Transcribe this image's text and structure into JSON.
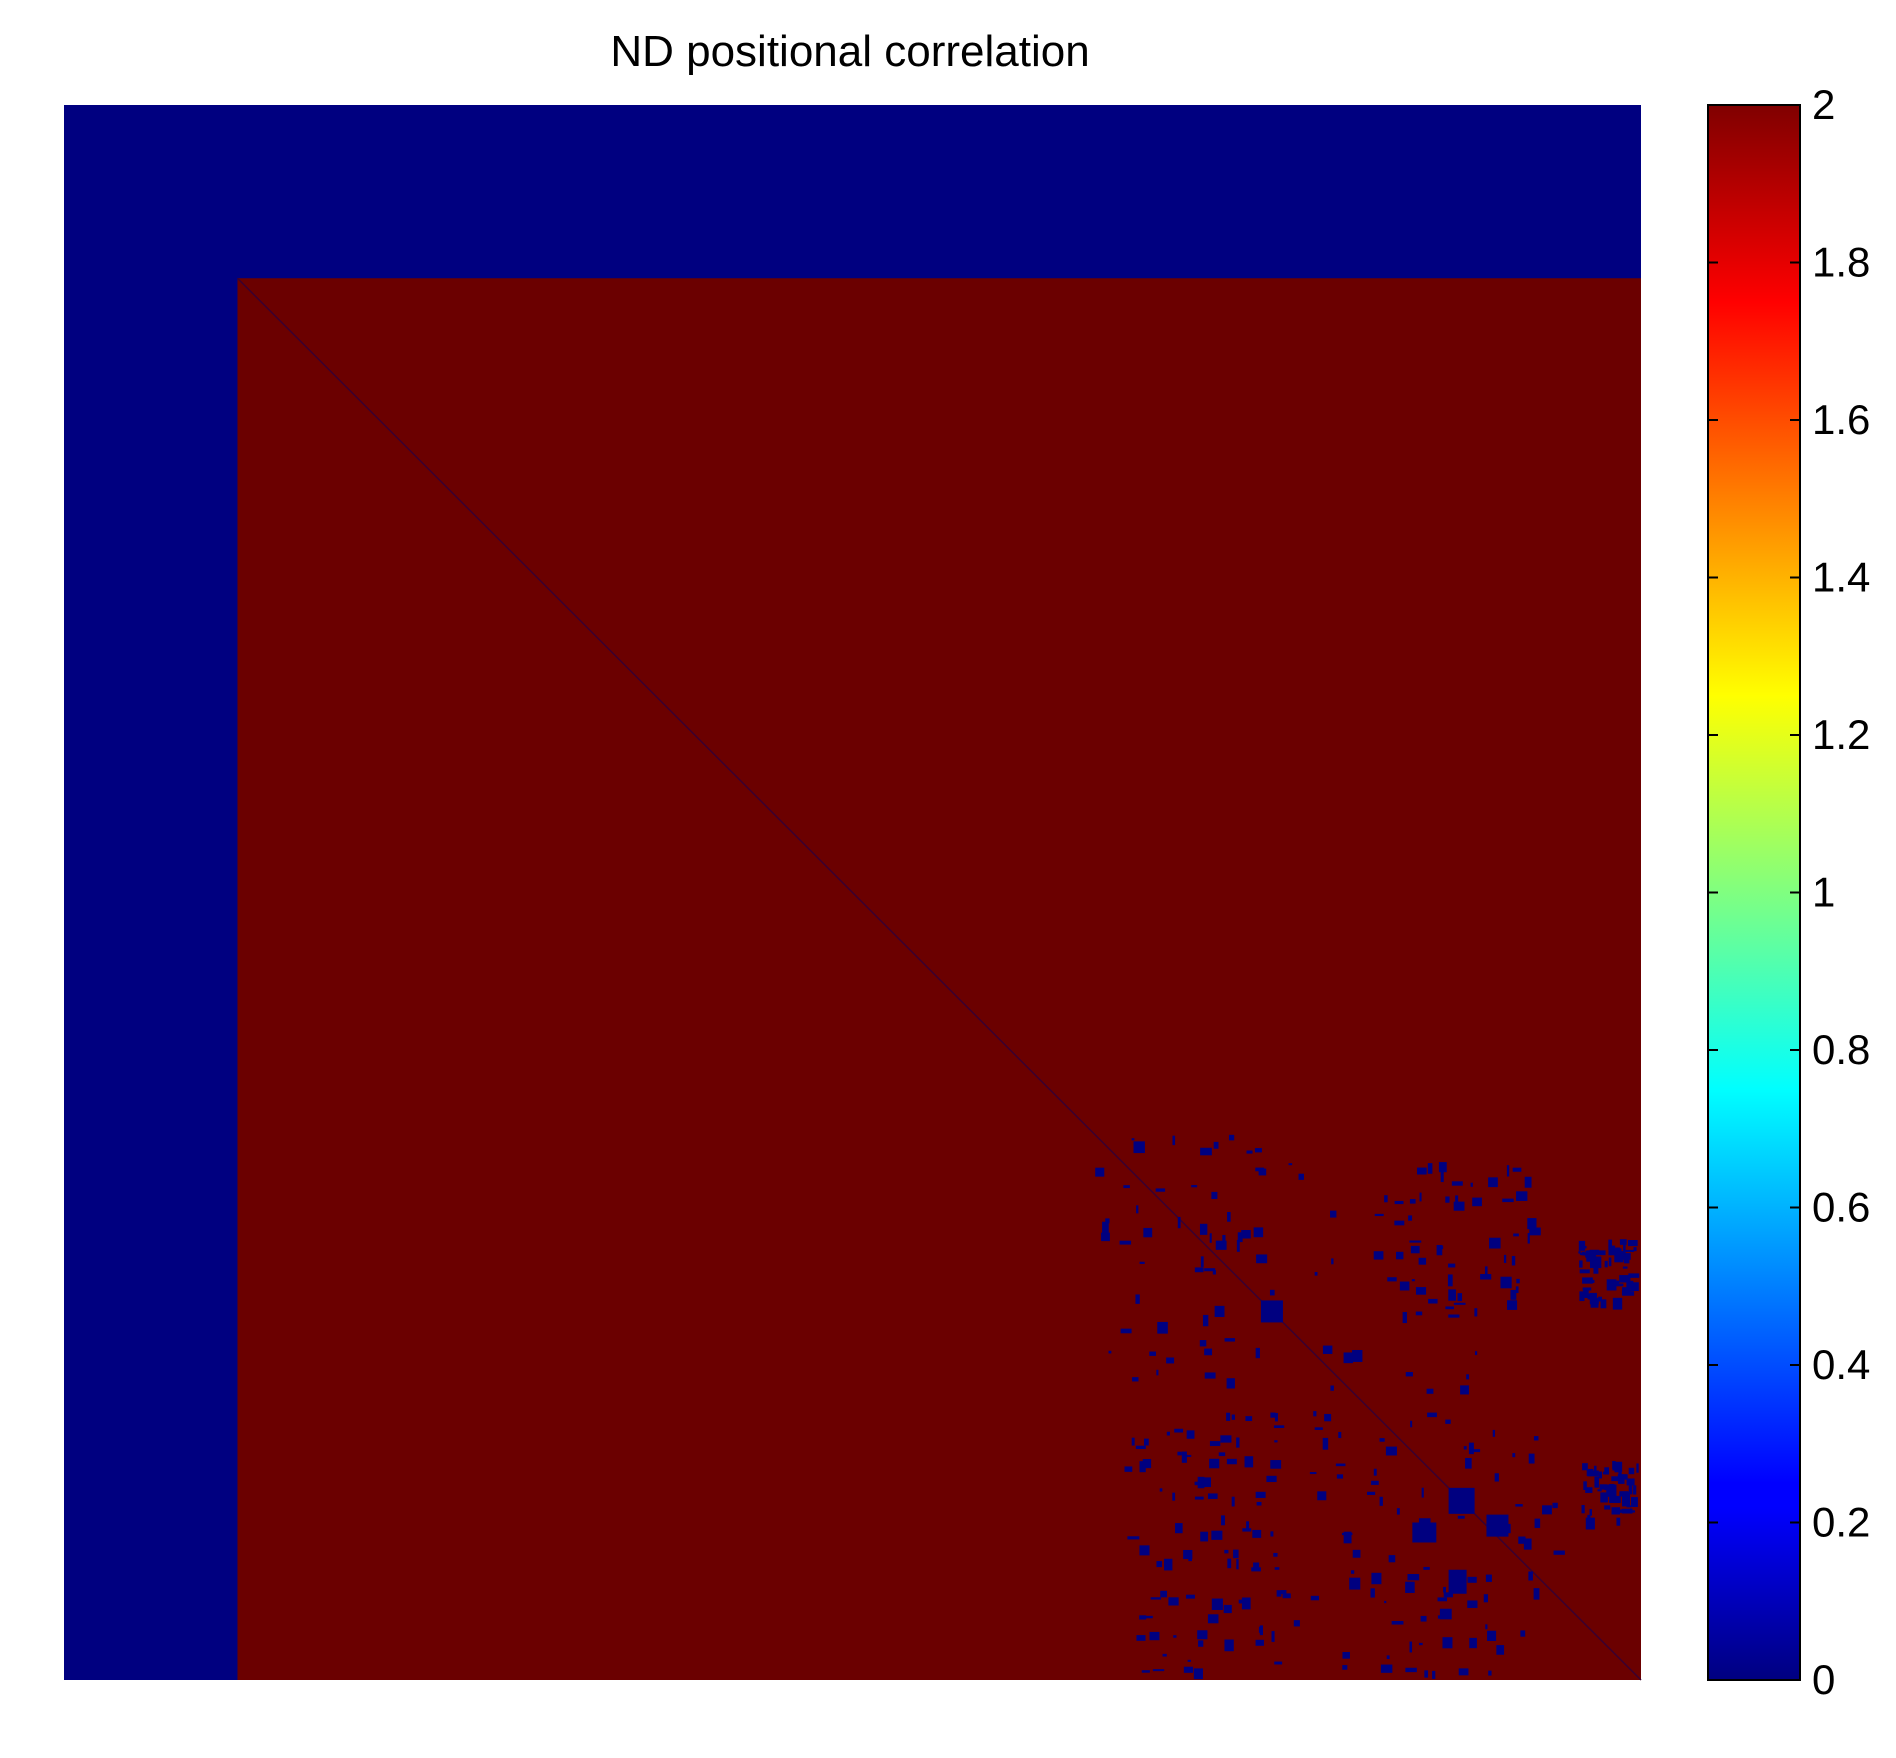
{
  "chart_data": {
    "type": "heatmap",
    "title": "ND positional correlation",
    "xlabel": "",
    "ylabel": "",
    "colormap": "jet",
    "clim": [
      0,
      2
    ],
    "colorbar": {
      "ticks": [
        0,
        0.2,
        0.4,
        0.6,
        0.8,
        1,
        1.2,
        1.4,
        1.6,
        1.8,
        2
      ],
      "tick_labels": [
        "0",
        "0.2",
        "0.4",
        "0.6",
        "0.8",
        "1",
        "1.2",
        "1.4",
        "1.6",
        "1.8",
        "2"
      ]
    },
    "matrix_description": {
      "background_value": 2,
      "zero_band_fraction": 0.11,
      "diagonal_value": 0,
      "cluster_regions_value": 0
    },
    "colors": {
      "low": "#000080",
      "high": "#6b0000"
    }
  }
}
